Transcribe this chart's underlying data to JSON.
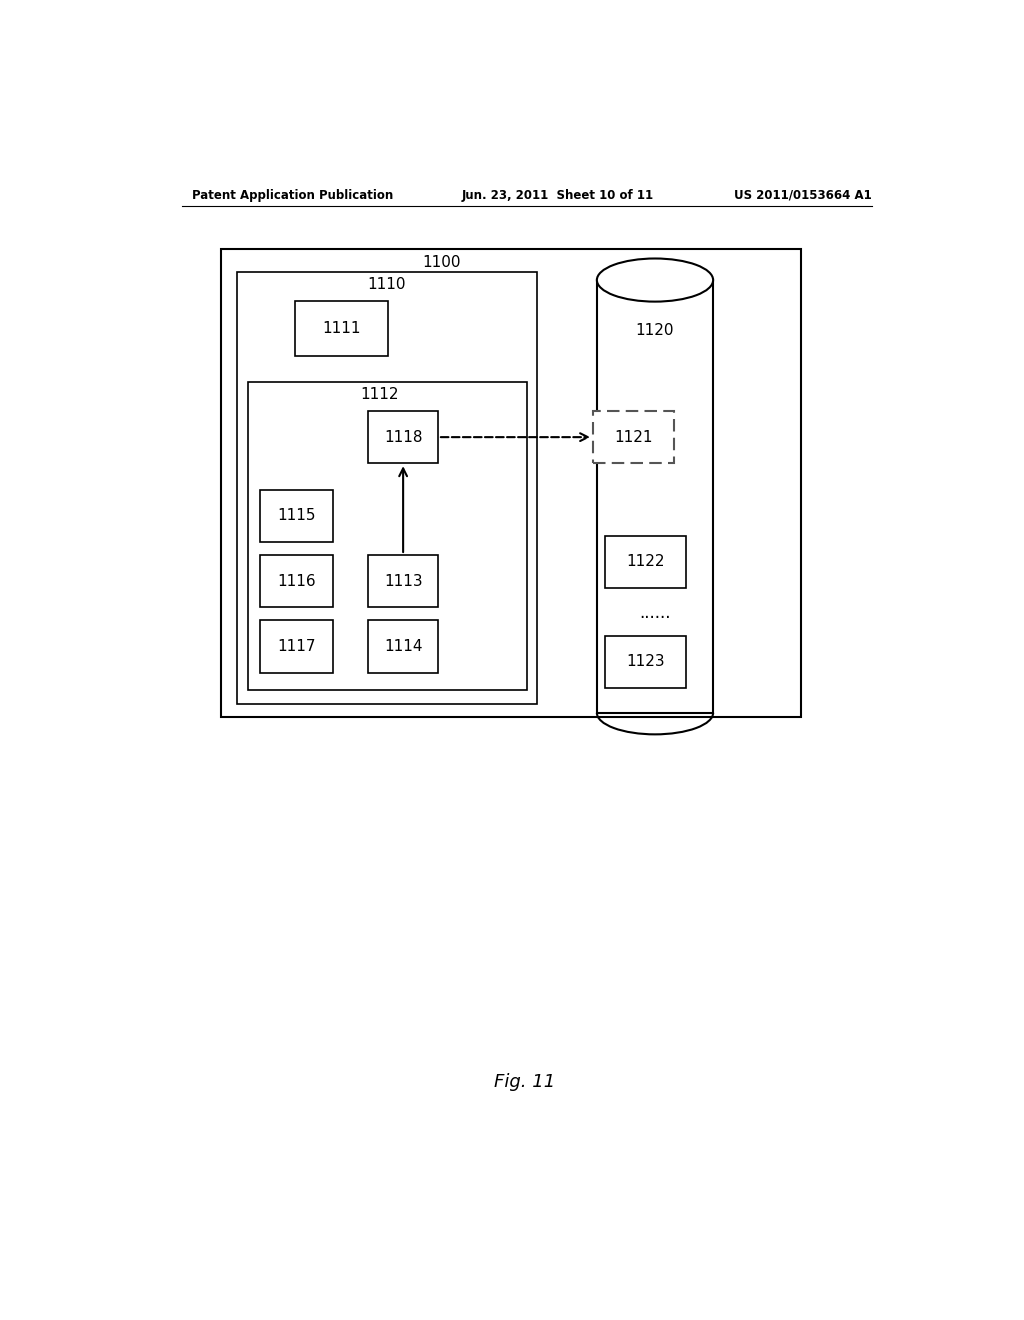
{
  "bg_color": "#ffffff",
  "header_left": "Patent Application Publication",
  "header_mid": "Jun. 23, 2011  Sheet 10 of 11",
  "header_right": "US 2011/0153664 A1",
  "fig_label": "Fig. 11",
  "outer_box_label": "1100",
  "box_1110_label": "1110",
  "box_1112_label": "1112",
  "box_1111_label": "1111",
  "box_1115_label": "1115",
  "box_1116_label": "1116",
  "box_1117_label": "1117",
  "box_1118_label": "1118",
  "box_1113_label": "1113",
  "box_1114_label": "1114",
  "cylinder_label": "1120",
  "box_1121_label": "1121",
  "box_1122_label": "1122",
  "dots_label": "......",
  "box_1123_label": "1123"
}
